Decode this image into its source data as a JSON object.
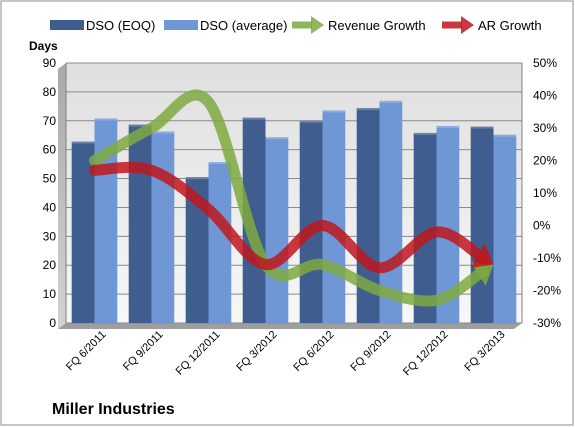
{
  "company": "Miller Industries",
  "chart_data": {
    "type": "bar",
    "categories": [
      "FQ 6/2011",
      "FQ 9/2011",
      "FQ 12/2011",
      "FQ 3/2012",
      "FQ 6/2012",
      "FQ 9/2012",
      "FQ 12/2012",
      "FQ 3/2013"
    ],
    "y_label": "Days",
    "y_ticks": [
      "0",
      "10",
      "20",
      "30",
      "40",
      "50",
      "60",
      "70",
      "80",
      "90"
    ],
    "y2_ticks": [
      "-30%",
      "-20%",
      "-10%",
      "0%",
      "10%",
      "20%",
      "30%",
      "40%",
      "50%"
    ],
    "ylim": [
      0,
      90
    ],
    "y2lim": [
      -30,
      50
    ],
    "grid": true,
    "legend_position": "top",
    "series": [
      {
        "name": "DSO (EOQ)",
        "kind": "bar",
        "color": "#3f5e8f",
        "values": [
          62.8,
          68.7,
          50.5,
          71.1,
          70.0,
          74.4,
          65.8,
          68.0
        ]
      },
      {
        "name": "DSO (average)",
        "kind": "bar",
        "color": "#6f97d6",
        "values": [
          70.8,
          66.3,
          55.7,
          64.3,
          73.6,
          76.9,
          68.2,
          65.2
        ]
      },
      {
        "name": "Revenue Growth",
        "kind": "arrow-line",
        "axis": "right",
        "color": "#7ea93f",
        "values": [
          20,
          30,
          38,
          -12,
          -12,
          -20,
          -23,
          -12
        ]
      },
      {
        "name": "AR Growth",
        "kind": "arrow-line",
        "axis": "right",
        "color": "#c0161d",
        "values": [
          17,
          17,
          5,
          -12,
          0,
          -13,
          -2,
          -12
        ]
      }
    ]
  }
}
